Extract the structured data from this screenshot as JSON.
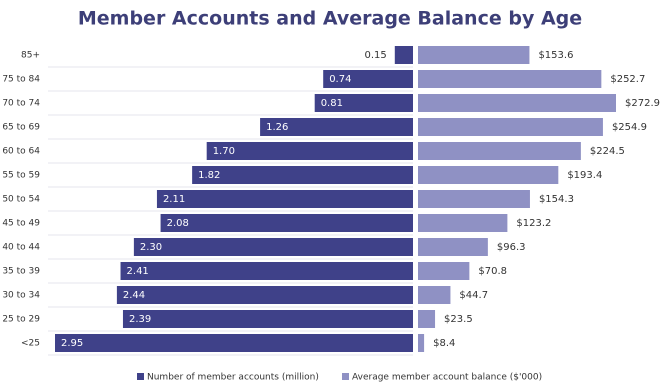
{
  "chart_data": {
    "type": "butterfly",
    "title": "Member Accounts and Average Balance by Age",
    "categories": [
      "85+",
      "75 to 84",
      "70 to 74",
      "65 to 69",
      "60 to 64",
      "55 to 59",
      "50 to 54",
      "45 to 49",
      "40 to 44",
      "35 to 39",
      "30 to 34",
      "25 to 29",
      "<25"
    ],
    "series": [
      {
        "name": "Number of member accounts (million)",
        "color": "#3f4189",
        "values": [
          0.15,
          0.74,
          0.81,
          1.26,
          1.7,
          1.82,
          2.11,
          2.08,
          2.3,
          2.41,
          2.44,
          2.39,
          2.95
        ],
        "value_labels": [
          "0.15",
          "0.74",
          "0.81",
          "1.26",
          "1.70",
          "1.82",
          "2.11",
          "2.08",
          "2.30",
          "2.41",
          "2.44",
          "2.39",
          "2.95"
        ]
      },
      {
        "name": "Average member account balance ($'000)",
        "color": "#8f91c4",
        "values": [
          153.6,
          252.7,
          272.9,
          254.9,
          224.5,
          193.4,
          154.3,
          123.2,
          96.3,
          70.8,
          44.7,
          23.5,
          8.4
        ],
        "value_labels": [
          "$153.6",
          "$252.7",
          "$272.9",
          "$254.9",
          "$224.5",
          "$193.4",
          "$154.3",
          "$123.2",
          "$96.3",
          "$70.8",
          "$44.7",
          "$23.5",
          "$8.4"
        ]
      }
    ]
  }
}
